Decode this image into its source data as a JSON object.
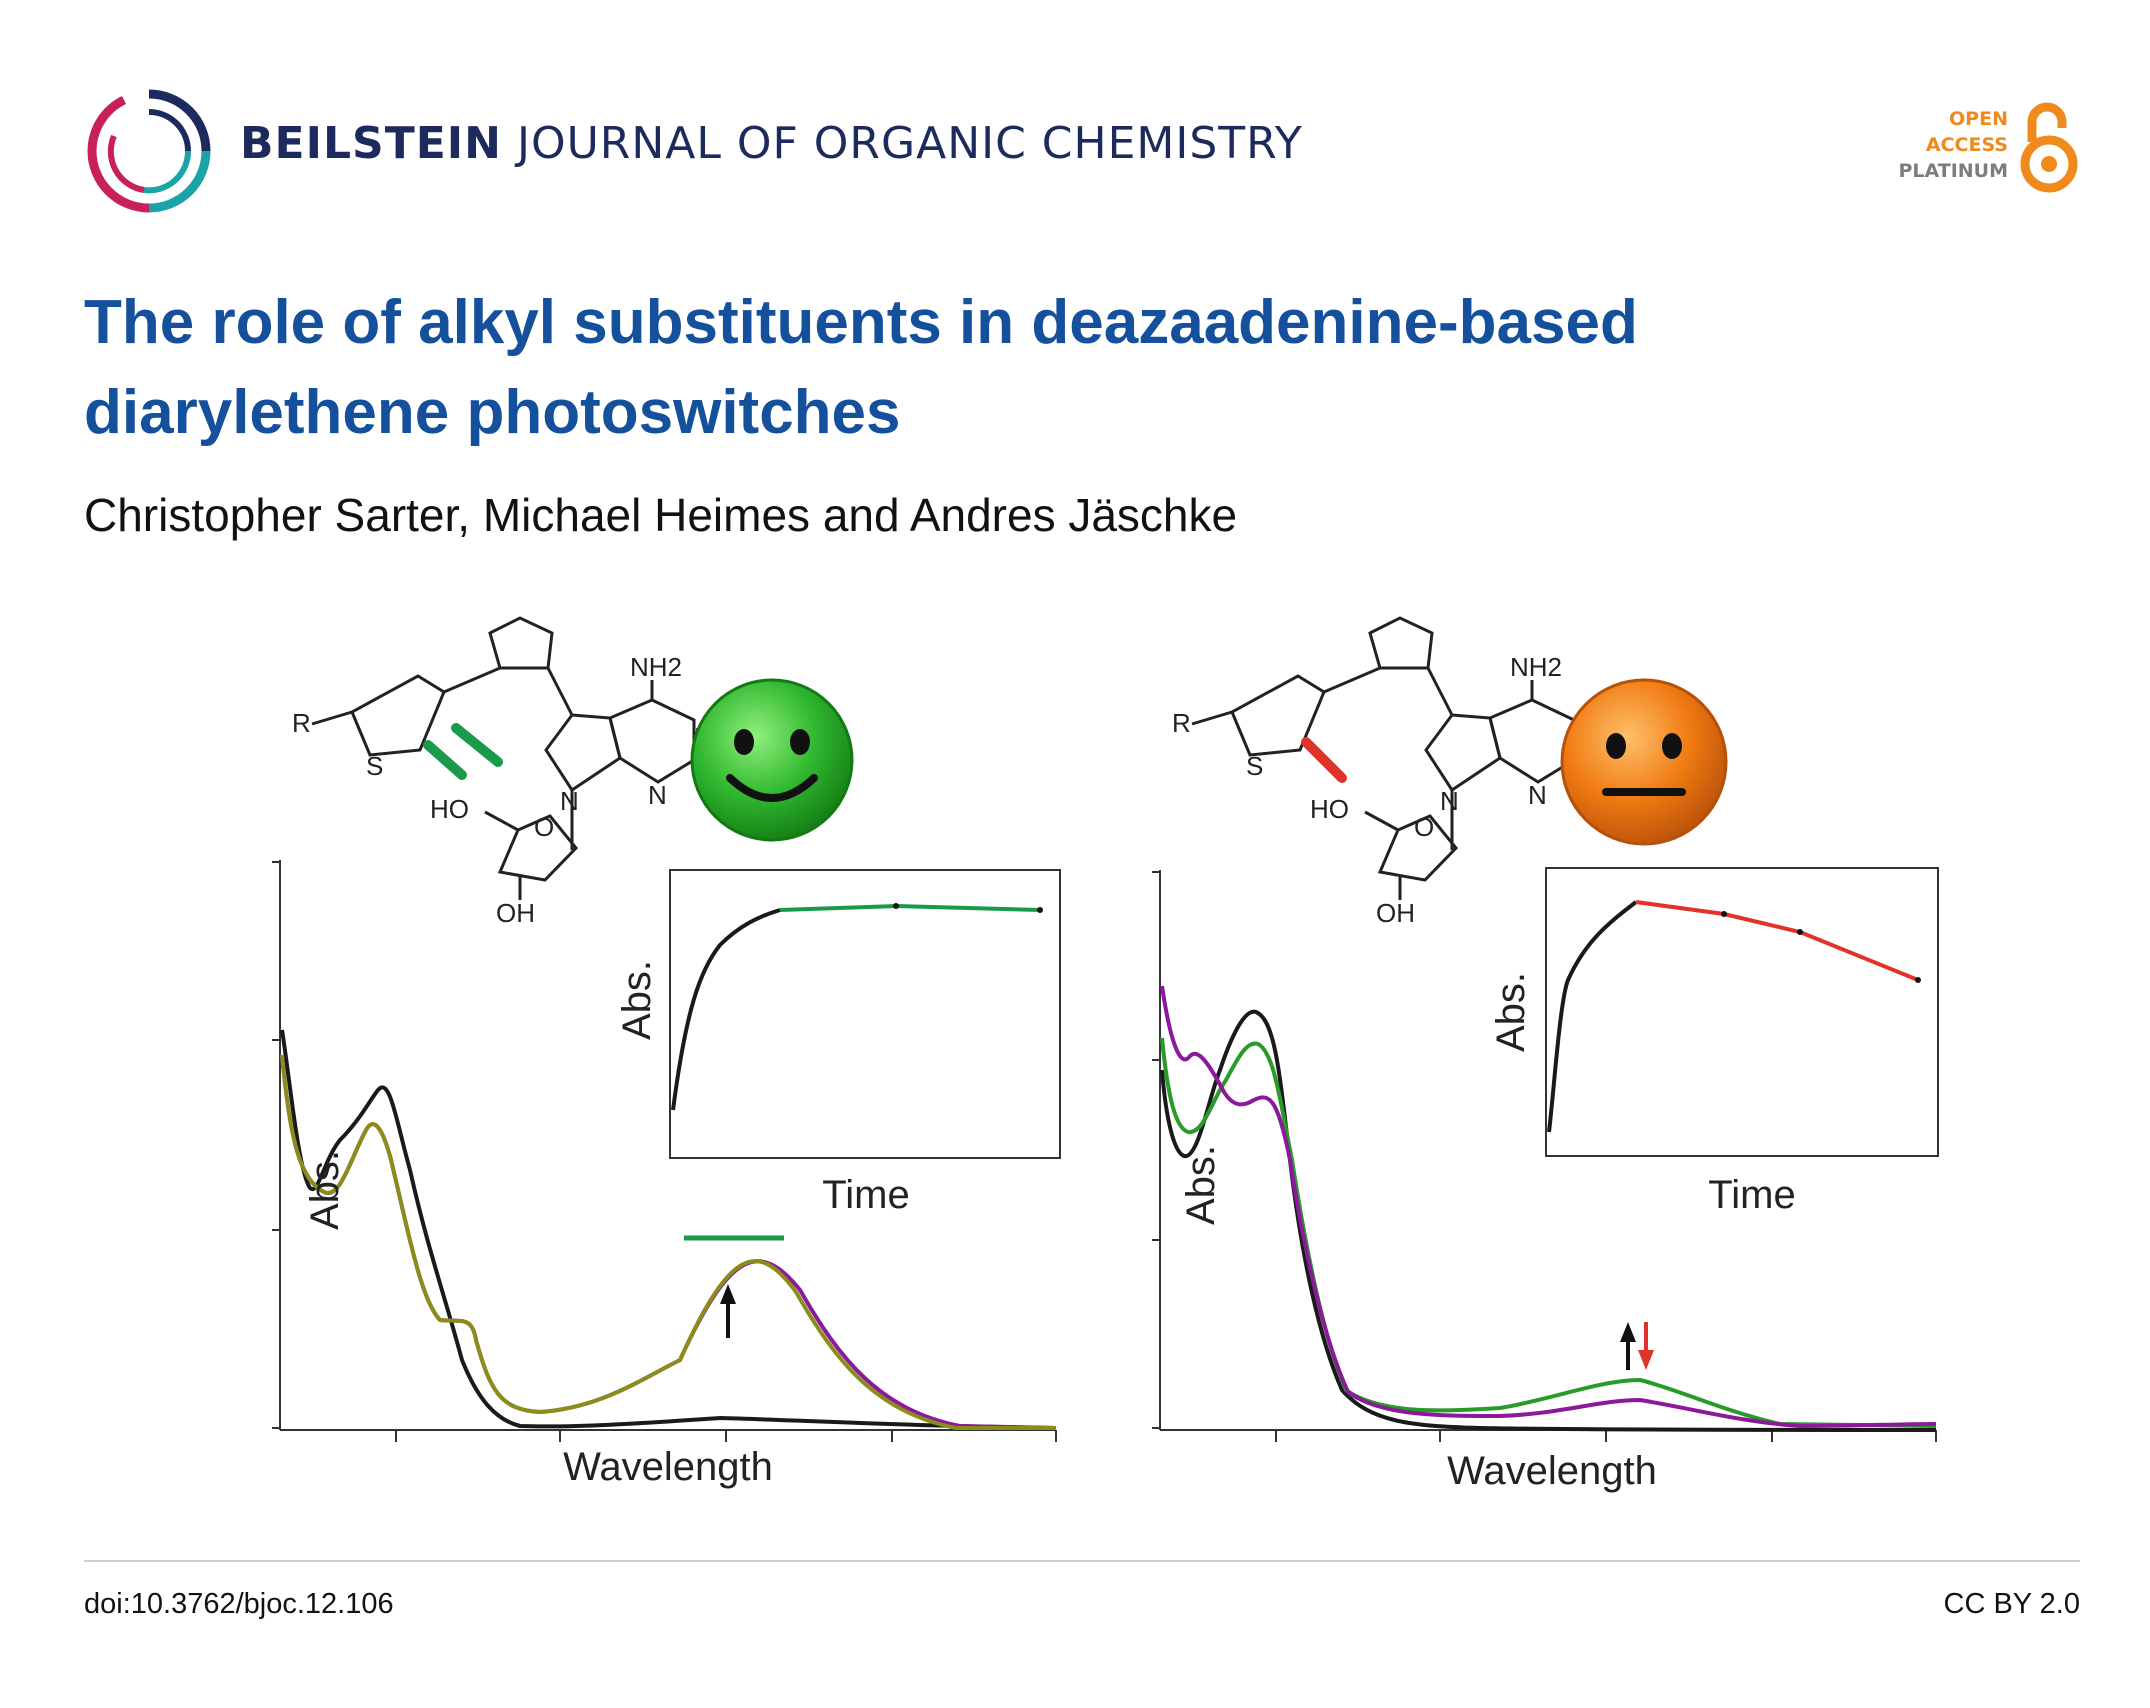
{
  "header": {
    "journal_name_bold": "BEILSTEIN",
    "journal_name_rest": "JOURNAL OF ORGANIC CHEMISTRY",
    "open_access": {
      "line1": "OPEN",
      "line2": "ACCESS",
      "line3": "PLATINUM"
    }
  },
  "paper": {
    "title_line1": "The role of alkyl substituents in deazaadenine-based",
    "title_line2": "diarylethene photoswitches",
    "authors": "Christopher Sarter, Michael Heimes and Andres Jäschke"
  },
  "figure": {
    "left": {
      "structure_labels": {
        "r": "R",
        "s": "S",
        "nh2": "NH2",
        "n_top": "N",
        "n_mid": "N",
        "n_glyco": "N",
        "ho": "HO",
        "o": "O",
        "oh": "OH"
      },
      "ylabel": "Abs.",
      "xlabel": "Wavelength",
      "inset_ylabel": "Abs.",
      "inset_xlabel": "Time",
      "emoji": "happy",
      "arrow": "up"
    },
    "right": {
      "structure_labels": {
        "r": "R",
        "s": "S",
        "nh2": "NH2",
        "n_top": "N",
        "n_mid": "N",
        "n_glyco": "N",
        "ho": "HO",
        "o": "O",
        "oh": "OH"
      },
      "ylabel": "Abs.",
      "xlabel": "Wavelength",
      "inset_ylabel": "Abs.",
      "inset_xlabel": "Time",
      "emoji": "neutral",
      "arrows": [
        "up",
        "down"
      ]
    },
    "colors": {
      "green_face": "#2fb62f",
      "orange_face": "#f07a12",
      "open_form": "#1a1a1a",
      "pss_green": "#2a9a2a",
      "pss_purple": "#8a1a9a",
      "pss_olive": "#8c8c1a",
      "fatigue_red": "#e0332a"
    }
  },
  "footer": {
    "doi": "doi:10.3762/bjoc.12.106",
    "license": "CC BY 2.0"
  }
}
